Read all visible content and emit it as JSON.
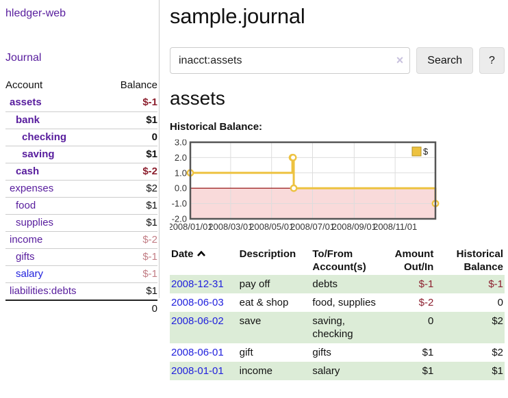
{
  "app": {
    "title": "hledger-web",
    "nav_journal_label": "Journal"
  },
  "sidebar": {
    "header": {
      "account": "Account",
      "balance": "Balance"
    },
    "accounts": [
      {
        "name": "assets",
        "depth": 1,
        "bold": true,
        "balance": "$-1",
        "negative": true
      },
      {
        "name": "bank",
        "depth": 2,
        "bold": true,
        "balance": "$1",
        "negative": false
      },
      {
        "name": "checking",
        "depth": 3,
        "bold": true,
        "balance": "0",
        "negative": false
      },
      {
        "name": "saving",
        "depth": 3,
        "bold": true,
        "balance": "$1",
        "negative": false
      },
      {
        "name": "cash",
        "depth": 2,
        "bold": true,
        "balance": "$-2",
        "negative": true
      },
      {
        "name": "expenses",
        "depth": 1,
        "bold": false,
        "balance": "$2",
        "negative": false
      },
      {
        "name": "food",
        "depth": 2,
        "bold": false,
        "balance": "$1",
        "negative": false
      },
      {
        "name": "supplies",
        "depth": 2,
        "bold": false,
        "balance": "$1",
        "negative": false
      },
      {
        "name": "income",
        "depth": 1,
        "bold": false,
        "balance": "$-2",
        "negative": true
      },
      {
        "name": "gifts",
        "depth": 2,
        "bold": false,
        "balance": "$-1",
        "negative": true
      },
      {
        "name": "salary",
        "depth": 2,
        "bold": false,
        "balance": "$-1",
        "negative": true,
        "unvisited": true
      },
      {
        "name": "liabilities:debts",
        "depth": 1,
        "bold": false,
        "balance": "$1",
        "negative": false
      }
    ],
    "total": "0"
  },
  "main": {
    "title": "sample.journal",
    "search": {
      "value": "inacct:assets",
      "placeholder": "",
      "clear_icon": "×",
      "search_button": "Search",
      "help_button": "?"
    },
    "account_heading": "assets",
    "chart_heading": "Historical Balance:"
  },
  "chart_data": {
    "type": "line",
    "mode": "step-after",
    "title": "Historical Balance",
    "xlabel": "",
    "ylabel": "",
    "xlim_days": [
      0,
      365
    ],
    "ylim": [
      -2.0,
      3.0
    ],
    "grid": true,
    "negative_region_shaded": true,
    "legend": {
      "label": "$",
      "position": "top-right"
    },
    "series": [
      {
        "name": "$",
        "points": [
          {
            "date": "2008-01-01",
            "day": 0,
            "value": 1
          },
          {
            "date": "2008-06-01",
            "day": 152,
            "value": 2
          },
          {
            "date": "2008-06-02",
            "day": 153,
            "value": 2
          },
          {
            "date": "2008-06-03",
            "day": 154,
            "value": 0
          },
          {
            "date": "2008-12-31",
            "day": 365,
            "value": -1
          }
        ]
      }
    ],
    "x_ticks": [
      {
        "label": "2008/01/01",
        "day": 0
      },
      {
        "label": "2008/03/01",
        "day": 60
      },
      {
        "label": "2008/05/01",
        "day": 121
      },
      {
        "label": "2008/07/01",
        "day": 182
      },
      {
        "label": "2008/09/01",
        "day": 244
      },
      {
        "label": "2008/11/01",
        "day": 305
      }
    ],
    "y_ticks": [
      {
        "label": "3.0",
        "value": 3
      },
      {
        "label": "2.0",
        "value": 2
      },
      {
        "label": "1.0",
        "value": 1
      },
      {
        "label": "0.0",
        "value": 0
      },
      {
        "label": "-1.0",
        "value": -1
      },
      {
        "label": "-2.0",
        "value": -2
      }
    ]
  },
  "register": {
    "headers": {
      "date": "Date",
      "sort_icon": "chevron-up-icon",
      "description": "Description",
      "tofrom_line1": "To/From",
      "tofrom_line2": "Account(s)",
      "amount_line1": "Amount",
      "amount_line2": "Out/In",
      "hist_line1": "Historical",
      "hist_line2": "Balance"
    },
    "rows": [
      {
        "date": "2008-12-31",
        "description": "pay off",
        "accounts": "debts",
        "amount": "$-1",
        "balance": "$-1"
      },
      {
        "date": "2008-06-03",
        "description": "eat & shop",
        "accounts": "food, supplies",
        "amount": "$-2",
        "balance": "0"
      },
      {
        "date": "2008-06-02",
        "description": "save",
        "accounts": "saving, checking",
        "amount": "0",
        "balance": "$2"
      },
      {
        "date": "2008-06-01",
        "description": "gift",
        "accounts": "gifts",
        "amount": "$1",
        "balance": "$2"
      },
      {
        "date": "2008-01-01",
        "description": "income",
        "accounts": "salary",
        "amount": "$1",
        "balance": "$1"
      }
    ]
  },
  "colors": {
    "link_visited_purple": "#571c9d",
    "link_unvisited_blue": "#2121dd",
    "negative_dark_red": "#8c1f2e",
    "negative_light_red": "#c27d85",
    "row_stripe_green": "#dcecd7",
    "chart_line_gold": "#edc240",
    "chart_negative_fill_pink": "#f9dada",
    "chart_zero_line_dark_red": "#8b0000",
    "chart_border_gray": "#555555",
    "grid_line_gray": "#dddddd",
    "button_gray": "#ececec"
  }
}
